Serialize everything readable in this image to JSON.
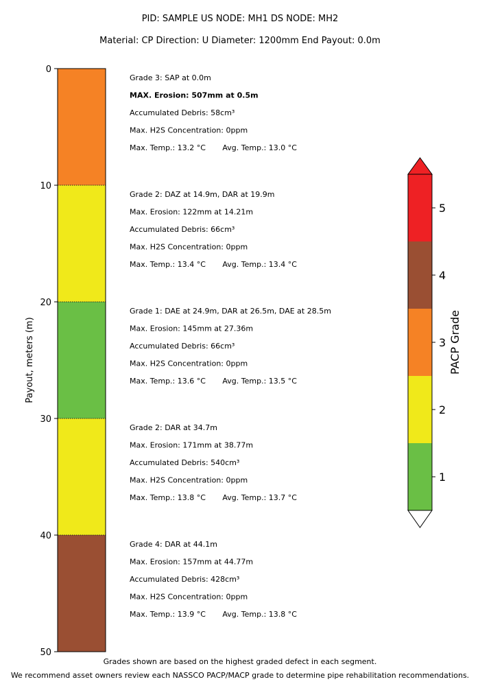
{
  "header": {
    "line1": "PID: SAMPLE    US NODE: MH1    DS NODE: MH2",
    "line2": "Material: CP    Direction: U    Diameter: 1200mm    End Payout: 0.0m"
  },
  "footer": {
    "line1": "Grades shown are based on the highest graded defect in each segment.",
    "line2": "We recommend asset owners review each NASSCO PACP/MACP grade to determine pipe rehabilitation recommendations."
  },
  "chart_data": {
    "type": "bar",
    "orientation": "vertical-strip",
    "ylabel": "Payout, meters (m)",
    "ylim": [
      0,
      50
    ],
    "yticks": [
      "0",
      "10",
      "20",
      "30",
      "40",
      "50"
    ],
    "colorbar": {
      "label": "PACP Grade",
      "ticks": [
        "1",
        "2",
        "3",
        "4",
        "5"
      ],
      "colors": [
        "#6abf45",
        "#f0e91a",
        "#f58225",
        "#9a4f33",
        "#ee2124"
      ]
    },
    "segments": [
      {
        "start": 0,
        "end": 10,
        "grade": 3,
        "color": "#f58225",
        "lines": [
          "Grade 3: SAP at 0.0m",
          "MAX. Erosion: 507mm at 0.5m",
          "Accumulated Debris: 58cm³",
          "Max. H2S Concentration: 0ppm",
          "Max. Temp.: 13.2 °C       Avg. Temp.: 13.0 °C"
        ],
        "bold_line": 1
      },
      {
        "start": 10,
        "end": 20,
        "grade": 2,
        "color": "#f0e91a",
        "lines": [
          "Grade 2: DAZ at 14.9m, DAR at 19.9m",
          "Max. Erosion: 122mm at 14.21m",
          "Accumulated Debris: 66cm³",
          "Max. H2S Concentration: 0ppm",
          "Max. Temp.: 13.4 °C       Avg. Temp.: 13.4 °C"
        ]
      },
      {
        "start": 20,
        "end": 30,
        "grade": 1,
        "color": "#6abf45",
        "lines": [
          "Grade 1: DAE at 24.9m, DAR at 26.5m, DAE at 28.5m",
          "Max. Erosion: 145mm at 27.36m",
          "Accumulated Debris: 66cm³",
          "Max. H2S Concentration: 0ppm",
          "Max. Temp.: 13.6 °C       Avg. Temp.: 13.5 °C"
        ]
      },
      {
        "start": 30,
        "end": 40,
        "grade": 2,
        "color": "#f0e91a",
        "lines": [
          "Grade 2: DAR at 34.7m",
          "Max. Erosion: 171mm at 38.77m",
          "Accumulated Debris: 540cm³",
          "Max. H2S Concentration: 0ppm",
          "Max. Temp.: 13.8 °C       Avg. Temp.: 13.7 °C"
        ]
      },
      {
        "start": 40,
        "end": 50,
        "grade": 4,
        "color": "#9a4f33",
        "lines": [
          "Grade 4: DAR at 44.1m",
          "Max. Erosion: 157mm at 44.77m",
          "Accumulated Debris: 428cm³",
          "Max. H2S Concentration: 0ppm",
          "Max. Temp.: 13.9 °C       Avg. Temp.: 13.8 °C"
        ]
      }
    ]
  }
}
